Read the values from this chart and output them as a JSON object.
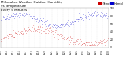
{
  "title": "Milwaukee Weather Outdoor Humidity",
  "subtitle1": "vs Temperature",
  "subtitle2": "Every 5 Minutes",
  "humidity_color": "#0000cc",
  "temp_color": "#cc0000",
  "background_color": "#ffffff",
  "grid_color": "#bbbbbb",
  "ylim": [
    0,
    100
  ],
  "title_fontsize": 3.0,
  "tick_fontsize": 2.2,
  "legend_fontsize": 2.5,
  "dot_size": 0.4
}
